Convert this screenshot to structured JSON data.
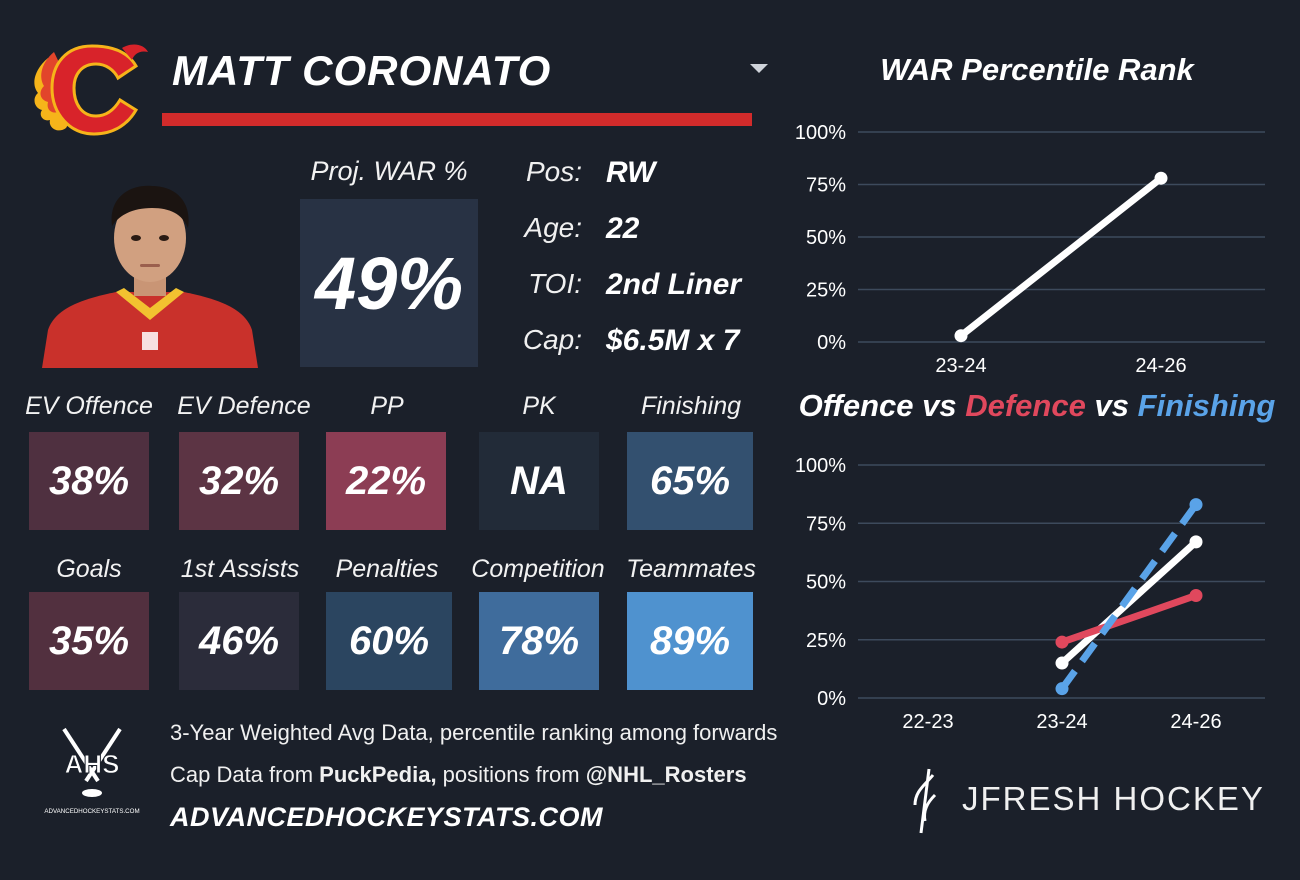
{
  "player": {
    "name": "MATT CORONATO",
    "team_logo_icon": "calgary-flames-c-logo",
    "photo_icon": "player-headshot"
  },
  "projection": {
    "label": "Proj. WAR %",
    "value": "49%"
  },
  "info": [
    {
      "key": "Pos:",
      "value": "RW"
    },
    {
      "key": "Age:",
      "value": "22"
    },
    {
      "key": "TOI:",
      "value": "2nd Liner"
    },
    {
      "key": "Cap:",
      "value": "$6.5M x 7"
    }
  ],
  "stats_row1": [
    {
      "label": "EV Offence",
      "value": "38%",
      "color": "#4f3040"
    },
    {
      "label": "EV Defence",
      "value": "32%",
      "color": "#5c3444"
    },
    {
      "label": "PP",
      "value": "22%",
      "color": "#8c3d54"
    },
    {
      "label": "PK",
      "value": "NA",
      "color": "#222b38"
    },
    {
      "label": "Finishing",
      "value": "65%",
      "color": "#33506f"
    }
  ],
  "stats_row2": [
    {
      "label": "Goals",
      "value": "35%",
      "color": "#52303f"
    },
    {
      "label": "1st Assists",
      "value": "46%",
      "color": "#2b2c3a"
    },
    {
      "label": "Penalties",
      "value": "60%",
      "color": "#2b4560"
    },
    {
      "label": "Competition",
      "value": "78%",
      "color": "#3f6c9c"
    },
    {
      "label": "Teammates",
      "value": "89%",
      "color": "#4f92cf"
    }
  ],
  "footer": {
    "line1": "3-Year Weighted Avg Data, percentile ranking among forwards",
    "line2_prefix": "Cap Data from ",
    "line2_source": "PuckPedia,",
    "line2_mid": " positions from ",
    "line2_handle": "@NHL_Rosters",
    "site": "ADVANCEDHOCKEYSTATS.COM",
    "ahs_logo_text": "AHS",
    "ahs_logo_subtext": "ADVANCEDHOCKEYSTATS.COM",
    "brand": "JFRESH HOCKEY"
  },
  "chart_data": [
    {
      "type": "line",
      "title": "WAR Percentile Rank",
      "categories": [
        "23-24",
        "24-26"
      ],
      "series": [
        {
          "values": [
            3,
            78
          ],
          "color": "#ffffff"
        }
      ],
      "yticks": [
        "100%",
        "75%",
        "50%",
        "25%",
        "0%"
      ],
      "ylim": [
        0,
        100
      ],
      "grid": true
    },
    {
      "type": "line",
      "title_parts": [
        {
          "text": "Offence",
          "color": "#ffffff"
        },
        {
          "text": " vs ",
          "color": "#ffffff"
        },
        {
          "text": "Defence",
          "color": "#e0485d"
        },
        {
          "text": " vs ",
          "color": "#ffffff"
        },
        {
          "text": "Finishing",
          "color": "#5aa3e8"
        }
      ],
      "categories": [
        "22-23",
        "23-24",
        "24-26"
      ],
      "series": [
        {
          "name": "Offence",
          "values": [
            null,
            15,
            67
          ],
          "color": "#ffffff",
          "dashed": false
        },
        {
          "name": "Defence",
          "values": [
            null,
            24,
            44
          ],
          "color": "#e0485d",
          "dashed": false
        },
        {
          "name": "Finishing",
          "values": [
            null,
            4,
            83
          ],
          "color": "#5aa3e8",
          "dashed": true
        }
      ],
      "yticks": [
        "100%",
        "75%",
        "50%",
        "25%",
        "0%"
      ],
      "ylim": [
        0,
        100
      ],
      "grid": true
    }
  ]
}
